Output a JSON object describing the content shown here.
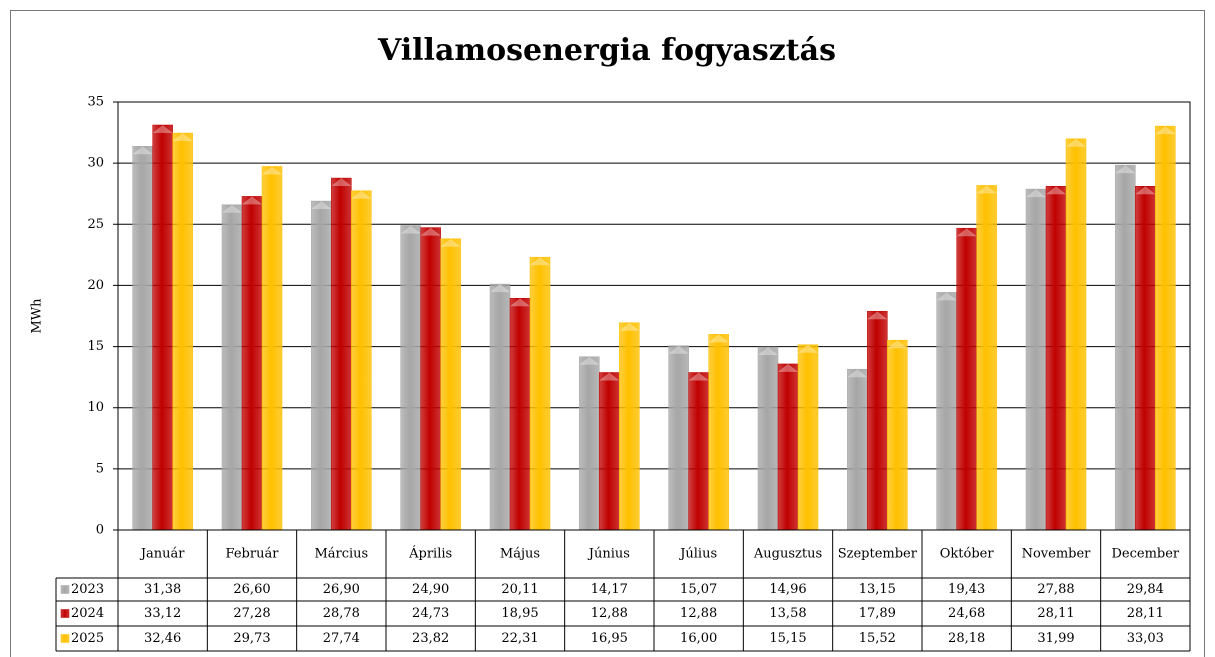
{
  "chart_data": {
    "type": "bar",
    "title": "Villamosenergia fogyasztás",
    "y_label": "MWh",
    "categories": [
      "Január",
      "Február",
      "Március",
      "Április",
      "Május",
      "Június",
      "Július",
      "Augusztus",
      "Szeptember",
      "Október",
      "November",
      "December"
    ],
    "series": [
      {
        "name": "2023",
        "color": "#a6a6a6",
        "values": [
          31.38,
          26.6,
          26.9,
          24.9,
          20.11,
          14.17,
          15.07,
          14.96,
          13.15,
          19.43,
          27.88,
          29.84
        ],
        "value_labels": [
          "31,38",
          "26,60",
          "26,90",
          "24,90",
          "20,11",
          "14,17",
          "15,07",
          "14,96",
          "13,15",
          "19,43",
          "27,88",
          "29,84"
        ]
      },
      {
        "name": "2024",
        "color": "#c00000",
        "values": [
          33.12,
          27.28,
          28.78,
          24.73,
          18.95,
          12.88,
          12.88,
          13.58,
          17.89,
          24.68,
          28.11,
          28.11
        ],
        "value_labels": [
          "33,12",
          "27,28",
          "28,78",
          "24,73",
          "18,95",
          "12,88",
          "12,88",
          "13,58",
          "17,89",
          "24,68",
          "28,11",
          "28,11"
        ]
      },
      {
        "name": "2025",
        "color": "#ffc000",
        "values": [
          32.46,
          29.73,
          27.74,
          23.82,
          22.31,
          16.95,
          16.0,
          15.15,
          15.52,
          28.18,
          31.99,
          33.03
        ],
        "value_labels": [
          "32,46",
          "29,73",
          "27,74",
          "23,82",
          "22,31",
          "16,95",
          "16,00",
          "15,15",
          "15,52",
          "28,18",
          "31,99",
          "33,03"
        ]
      }
    ],
    "ylim": [
      0,
      35
    ],
    "yticks": [
      0,
      5,
      10,
      15,
      20,
      25,
      30,
      35
    ],
    "grid": true
  }
}
